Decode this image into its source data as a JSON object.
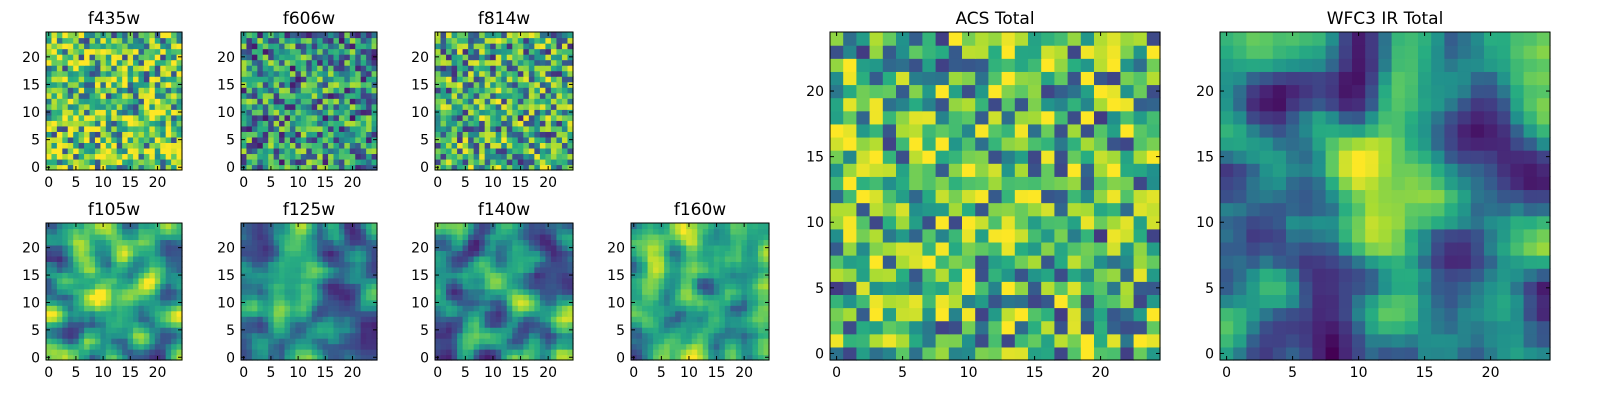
{
  "chart_data": [
    {
      "type": "heatmap",
      "title": "f435w",
      "grid_size": 25,
      "xlim": [
        0,
        24
      ],
      "ylim": [
        0,
        24
      ],
      "xticks": [
        0,
        5,
        10,
        15,
        20
      ],
      "yticks": [
        0,
        5,
        10,
        15,
        20
      ],
      "xtick_labels": [
        "0",
        "5",
        "10",
        "15",
        "20"
      ],
      "ytick_labels": [
        "0",
        "5",
        "10",
        "15",
        "20"
      ],
      "colormap": "viridis",
      "value_range": [
        0,
        1
      ],
      "noise_type": "fine",
      "bias": 0.25
    },
    {
      "type": "heatmap",
      "title": "f606w",
      "grid_size": 25,
      "xlim": [
        0,
        24
      ],
      "ylim": [
        0,
        24
      ],
      "xticks": [
        0,
        5,
        10,
        15,
        20
      ],
      "yticks": [
        0,
        5,
        10,
        15,
        20
      ],
      "xtick_labels": [
        "0",
        "5",
        "10",
        "15",
        "20"
      ],
      "ytick_labels": [
        "0",
        "5",
        "10",
        "15",
        "20"
      ],
      "colormap": "viridis",
      "value_range": [
        0,
        1
      ],
      "noise_type": "fine",
      "bias": 0.05
    },
    {
      "type": "heatmap",
      "title": "f814w",
      "grid_size": 25,
      "xlim": [
        0,
        24
      ],
      "ylim": [
        0,
        24
      ],
      "xticks": [
        0,
        5,
        10,
        15,
        20
      ],
      "yticks": [
        0,
        5,
        10,
        15,
        20
      ],
      "xtick_labels": [
        "0",
        "5",
        "10",
        "15",
        "20"
      ],
      "ytick_labels": [
        "0",
        "5",
        "10",
        "15",
        "20"
      ],
      "colormap": "viridis",
      "value_range": [
        0,
        1
      ],
      "noise_type": "fine",
      "bias": 0.15
    },
    {
      "type": "heatmap",
      "title": "f105w",
      "grid_size": 25,
      "xlim": [
        0,
        24
      ],
      "ylim": [
        0,
        24
      ],
      "xticks": [
        0,
        5,
        10,
        15,
        20
      ],
      "yticks": [
        0,
        5,
        10,
        15,
        20
      ],
      "xtick_labels": [
        "0",
        "5",
        "10",
        "15",
        "20"
      ],
      "ytick_labels": [
        "0",
        "5",
        "10",
        "15",
        "20"
      ],
      "colormap": "viridis",
      "value_range": [
        0,
        1
      ],
      "noise_type": "smooth",
      "bias": 0.15,
      "blob": [
        11,
        12,
        5,
        0.25
      ]
    },
    {
      "type": "heatmap",
      "title": "f125w",
      "grid_size": 25,
      "xlim": [
        0,
        24
      ],
      "ylim": [
        0,
        24
      ],
      "xticks": [
        0,
        5,
        10,
        15,
        20
      ],
      "yticks": [
        0,
        5,
        10,
        15,
        20
      ],
      "xtick_labels": [
        "0",
        "5",
        "10",
        "15",
        "20"
      ],
      "ytick_labels": [
        "0",
        "5",
        "10",
        "15",
        "20"
      ],
      "colormap": "viridis",
      "value_range": [
        0,
        1
      ],
      "noise_type": "smooth",
      "bias": 0.05,
      "blob": [
        12,
        11,
        4,
        0.25
      ]
    },
    {
      "type": "heatmap",
      "title": "f140w",
      "grid_size": 25,
      "xlim": [
        0,
        24
      ],
      "ylim": [
        0,
        24
      ],
      "xticks": [
        0,
        5,
        10,
        15,
        20
      ],
      "yticks": [
        0,
        5,
        10,
        15,
        20
      ],
      "xtick_labels": [
        "0",
        "5",
        "10",
        "15",
        "20"
      ],
      "ytick_labels": [
        "0",
        "5",
        "10",
        "15",
        "20"
      ],
      "colormap": "viridis",
      "value_range": [
        0,
        1
      ],
      "noise_type": "smooth",
      "bias": 0.1
    },
    {
      "type": "heatmap",
      "title": "f160w",
      "grid_size": 25,
      "xlim": [
        0,
        24
      ],
      "ylim": [
        0,
        24
      ],
      "xticks": [
        0,
        5,
        10,
        15,
        20
      ],
      "yticks": [
        0,
        5,
        10,
        15,
        20
      ],
      "xtick_labels": [
        "0",
        "5",
        "10",
        "15",
        "20"
      ],
      "ytick_labels": [
        "0",
        "5",
        "10",
        "15",
        "20"
      ],
      "colormap": "viridis",
      "value_range": [
        0,
        1
      ],
      "noise_type": "smooth",
      "bias": 0.2
    },
    {
      "type": "heatmap",
      "title": "ACS Total",
      "grid_size": 25,
      "xlim": [
        0,
        24
      ],
      "ylim": [
        0,
        24
      ],
      "xticks": [
        0,
        5,
        10,
        15,
        20
      ],
      "yticks": [
        0,
        5,
        10,
        15,
        20
      ],
      "xtick_labels": [
        "0",
        "5",
        "10",
        "15",
        "20"
      ],
      "ytick_labels": [
        "0",
        "5",
        "10",
        "15",
        "20"
      ],
      "colormap": "viridis",
      "value_range": [
        0,
        1
      ],
      "noise_type": "fine",
      "bias": 0.2
    },
    {
      "type": "heatmap",
      "title": "WFC3 IR Total",
      "grid_size": 25,
      "xlim": [
        0,
        24
      ],
      "ylim": [
        0,
        24
      ],
      "xticks": [
        0,
        5,
        10,
        15,
        20
      ],
      "yticks": [
        0,
        5,
        10,
        15,
        20
      ],
      "xtick_labels": [
        "0",
        "5",
        "10",
        "15",
        "20"
      ],
      "ytick_labels": [
        "0",
        "5",
        "10",
        "15",
        "20"
      ],
      "colormap": "viridis",
      "value_range": [
        0,
        1
      ],
      "noise_type": "smooth",
      "bias": 0.0,
      "blob": [
        12,
        12,
        3,
        0.55
      ]
    }
  ]
}
